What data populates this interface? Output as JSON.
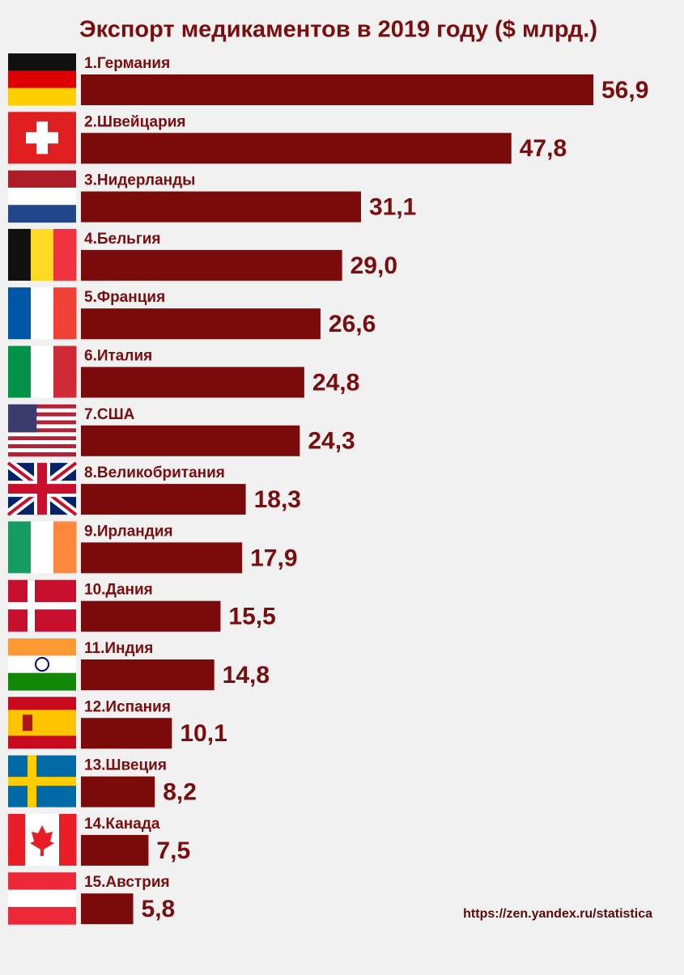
{
  "chart_data": {
    "type": "bar",
    "orientation": "horizontal",
    "title": "Экспорт медикаментов в 2019 году ($ млрд.)",
    "categories": [
      "1.Германия",
      "2.Швейцария",
      "3.Нидерланды",
      "4.Бельгия",
      "5.Франция",
      "6.Италия",
      "7.США",
      "8.Великобритания",
      "9.Ирландия",
      "10.Дания",
      "11.Индия",
      "12.Испания",
      "13.Швеция",
      "14.Канада",
      "15.Австрия"
    ],
    "values": [
      56.9,
      47.8,
      31.1,
      29.0,
      26.6,
      24.8,
      24.3,
      18.3,
      17.9,
      15.5,
      14.8,
      10.1,
      8.2,
      7.5,
      5.8
    ],
    "value_labels": [
      "56,9",
      "47,8",
      "31,1",
      "29,0",
      "26,6",
      "24,8",
      "24,3",
      "18,3",
      "17,9",
      "15,5",
      "14,8",
      "10,1",
      "8,2",
      "7,5",
      "5,8"
    ],
    "color": "#7b0a0a",
    "source": "https://zen.yandex.ru/statistica"
  }
}
